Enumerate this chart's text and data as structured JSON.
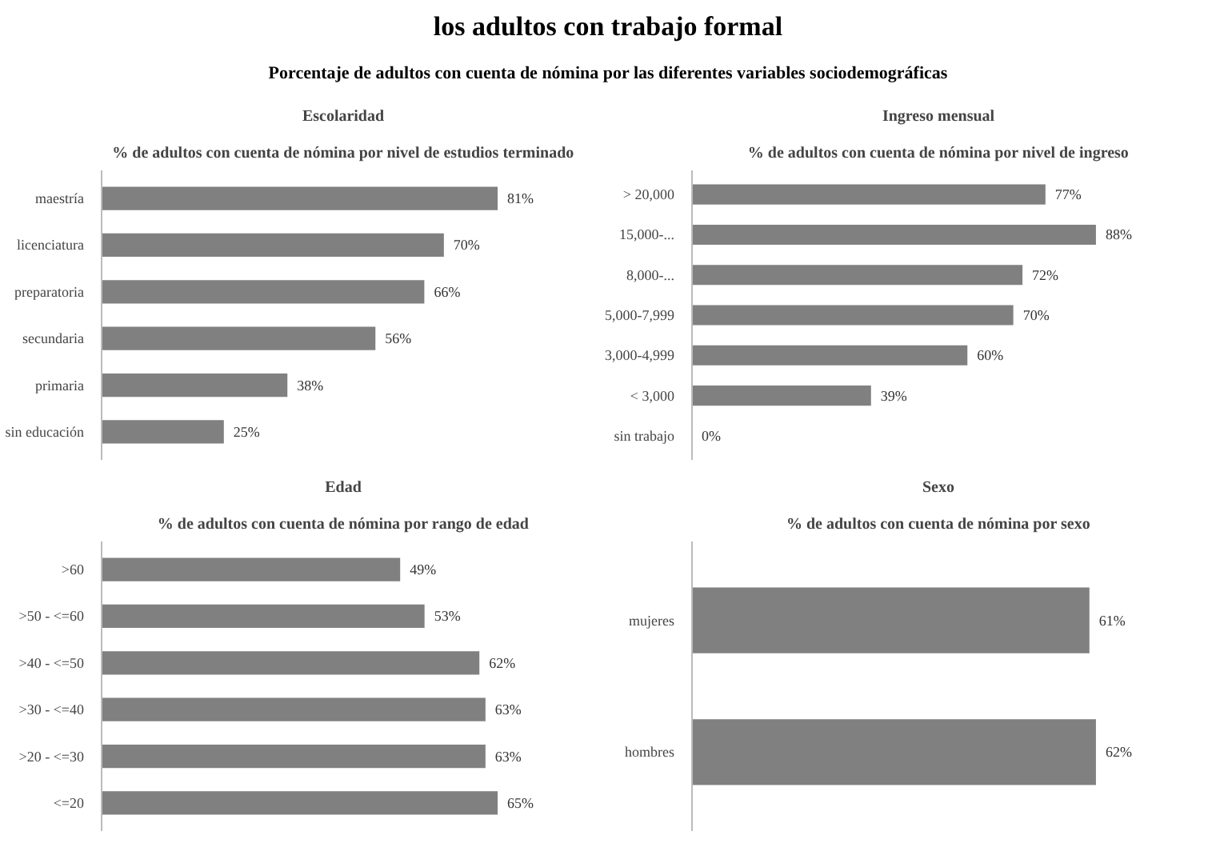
{
  "chart_data": [
    {
      "type": "bar",
      "orientation": "horizontal",
      "title": "Escolaridad",
      "subtitle": "% de adultos con cuenta de nómina por nivel de estudios terminado",
      "annotations": [
        "los adultos con trabajo formal",
        "Porcentaje de adultos con cuenta de nómina por las diferentes variables sociodemográficas"
      ],
      "categories": [
        "maestría",
        "licenciatura",
        "preparatoria",
        "secundaria",
        "primaria",
        "sin educación"
      ],
      "values": [
        81,
        70,
        66,
        56,
        38,
        25
      ],
      "value_labels": [
        "81%",
        "70%",
        "66%",
        "56%",
        "38%",
        "25%"
      ],
      "color": "#808080",
      "grid": false
    },
    {
      "type": "bar",
      "orientation": "horizontal",
      "title": "Ingreso mensual",
      "subtitle": "% de adultos con cuenta de nómina por nivel de ingreso",
      "categories": [
        "> 20,000",
        "15,000-...",
        "8,000-...",
        "5,000-7,999",
        "3,000-4,999",
        "< 3,000",
        "sin trabajo"
      ],
      "values": [
        77,
        88,
        72,
        70,
        60,
        39,
        0
      ],
      "value_labels": [
        "77%",
        "88%",
        "72%",
        "70%",
        "60%",
        "39%",
        "0%"
      ],
      "color": "#808080",
      "grid": false
    },
    {
      "type": "bar",
      "orientation": "horizontal",
      "title": "Edad",
      "subtitle": "% de adultos con cuenta de nómina por rango de edad",
      "categories": [
        ">60",
        ">50 - <=60",
        ">40 - <=50",
        ">30 - <=40",
        ">20 - <=30",
        "<=20"
      ],
      "values": [
        49,
        53,
        62,
        63,
        63,
        65
      ],
      "value_labels": [
        "49%",
        "53%",
        "62%",
        "63%",
        "63%",
        "65%"
      ],
      "color": "#808080",
      "grid": false
    },
    {
      "type": "bar",
      "orientation": "horizontal",
      "title": "Sexo",
      "subtitle": "% de adultos con cuenta de nómina por sexo",
      "categories": [
        "mujeres",
        "hombres"
      ],
      "values": [
        61,
        62
      ],
      "value_labels": [
        "61%",
        "62%"
      ],
      "color": "#808080",
      "grid": false
    }
  ]
}
